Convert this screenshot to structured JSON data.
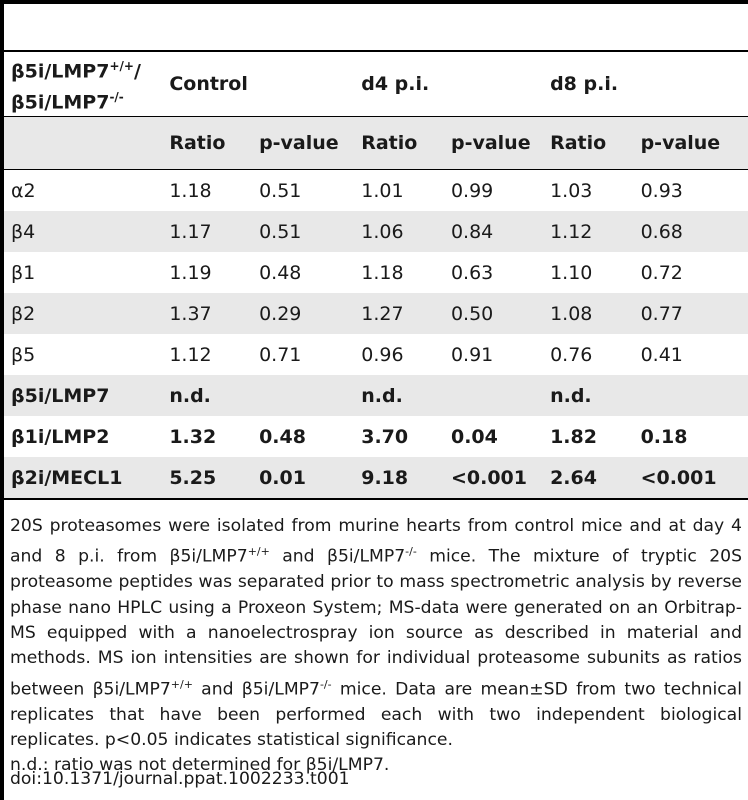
{
  "table": {
    "corner_label_line1": "β5i/LMP7",
    "corner_label_line1_sup": "+/+",
    "corner_label_line1_suffix": "/",
    "corner_label_line2": "β5i/LMP7",
    "corner_label_line2_sup": "-/-",
    "groups": [
      "Control",
      "d4 p.i.",
      "d8 p.i."
    ],
    "subheaders": [
      "Ratio",
      "p-value",
      "Ratio",
      "p-value",
      "Ratio",
      "p-value"
    ],
    "rows": [
      {
        "label": "α2",
        "cells": [
          "1.18",
          "0.51",
          "1.01",
          "0.99",
          "1.03",
          "0.93"
        ]
      },
      {
        "label": "β4",
        "cells": [
          "1.17",
          "0.51",
          "1.06",
          "0.84",
          "1.12",
          "0.68"
        ]
      },
      {
        "label": "β1",
        "cells": [
          "1.19",
          "0.48",
          "1.18",
          "0.63",
          "1.10",
          "0.72"
        ]
      },
      {
        "label": "β2",
        "cells": [
          "1.37",
          "0.29",
          "1.27",
          "0.50",
          "1.08",
          "0.77"
        ]
      },
      {
        "label": "β5",
        "cells": [
          "1.12",
          "0.71",
          "0.96",
          "0.91",
          "0.76",
          "0.41"
        ]
      },
      {
        "label": "β5i/LMP7",
        "cells": [
          "n.d.",
          "",
          "n.d.",
          "",
          "n.d.",
          ""
        ]
      },
      {
        "label": "β1i/LMP2",
        "cells": [
          "1.32",
          "0.48",
          "3.70",
          "0.04",
          "1.82",
          "0.18"
        ]
      },
      {
        "label": "β2i/MECL1",
        "cells": [
          "5.25",
          "0.01",
          "9.18",
          "<0.001",
          "2.64",
          "<0.001"
        ]
      }
    ]
  },
  "footnote": {
    "p1_a": "20S proteasomes were isolated from murine hearts from control mice and at day 4 and 8 p.i. from β5i/LMP7",
    "p1_sup1": "+/+",
    "p1_b": " and β5i/LMP7",
    "p1_sup2": "-/-",
    "p1_c": " mice. The mixture of tryptic 20S proteasome peptides was separated prior to mass spectrometric analysis by reverse phase nano HPLC using a Proxeon System; MS-data were generated on an Orbitrap-MS equipped with a nanoelectrospray ion source as described in material and methods. MS ion intensities are shown for individual proteasome subunits as ratios between β5i/LMP7",
    "p1_sup3": "+/+",
    "p1_d": " and β5i/LMP7",
    "p1_sup4": "-/-",
    "p1_e": " mice. Data are mean±SD from two technical replicates that have been performed each with two independent biological replicates. p<0.05 indicates statistical significance.",
    "p2": "n.d.: ratio was not determined for β5i/LMP7.",
    "doi": "doi:10.1371/journal.ppat.1002233.t001"
  }
}
